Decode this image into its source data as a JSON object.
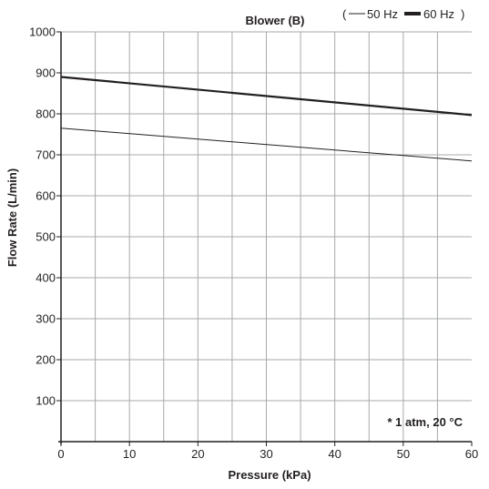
{
  "chart_data": {
    "type": "line",
    "title": "Blower (B)",
    "xlabel": "Pressure (kPa)",
    "ylabel": "Flow Rate (L/min)",
    "xlim": [
      0,
      60
    ],
    "ylim": [
      0,
      1000
    ],
    "x_ticks": [
      0,
      10,
      20,
      30,
      40,
      50,
      60
    ],
    "y_ticks": [
      100,
      200,
      300,
      400,
      500,
      600,
      700,
      800,
      900,
      1000
    ],
    "grid": true,
    "legend": {
      "placement": "top-right",
      "open": "(",
      "close": ")",
      "items": [
        "50 Hz",
        "60 Hz"
      ]
    },
    "series": [
      {
        "name": "50 Hz",
        "x": [
          0,
          60
        ],
        "y": [
          765,
          685
        ],
        "line": "thin"
      },
      {
        "name": "60 Hz",
        "x": [
          0,
          60
        ],
        "y": [
          890,
          797
        ],
        "line": "thick"
      }
    ],
    "annotation": "* 1 atm, 20 °C"
  }
}
